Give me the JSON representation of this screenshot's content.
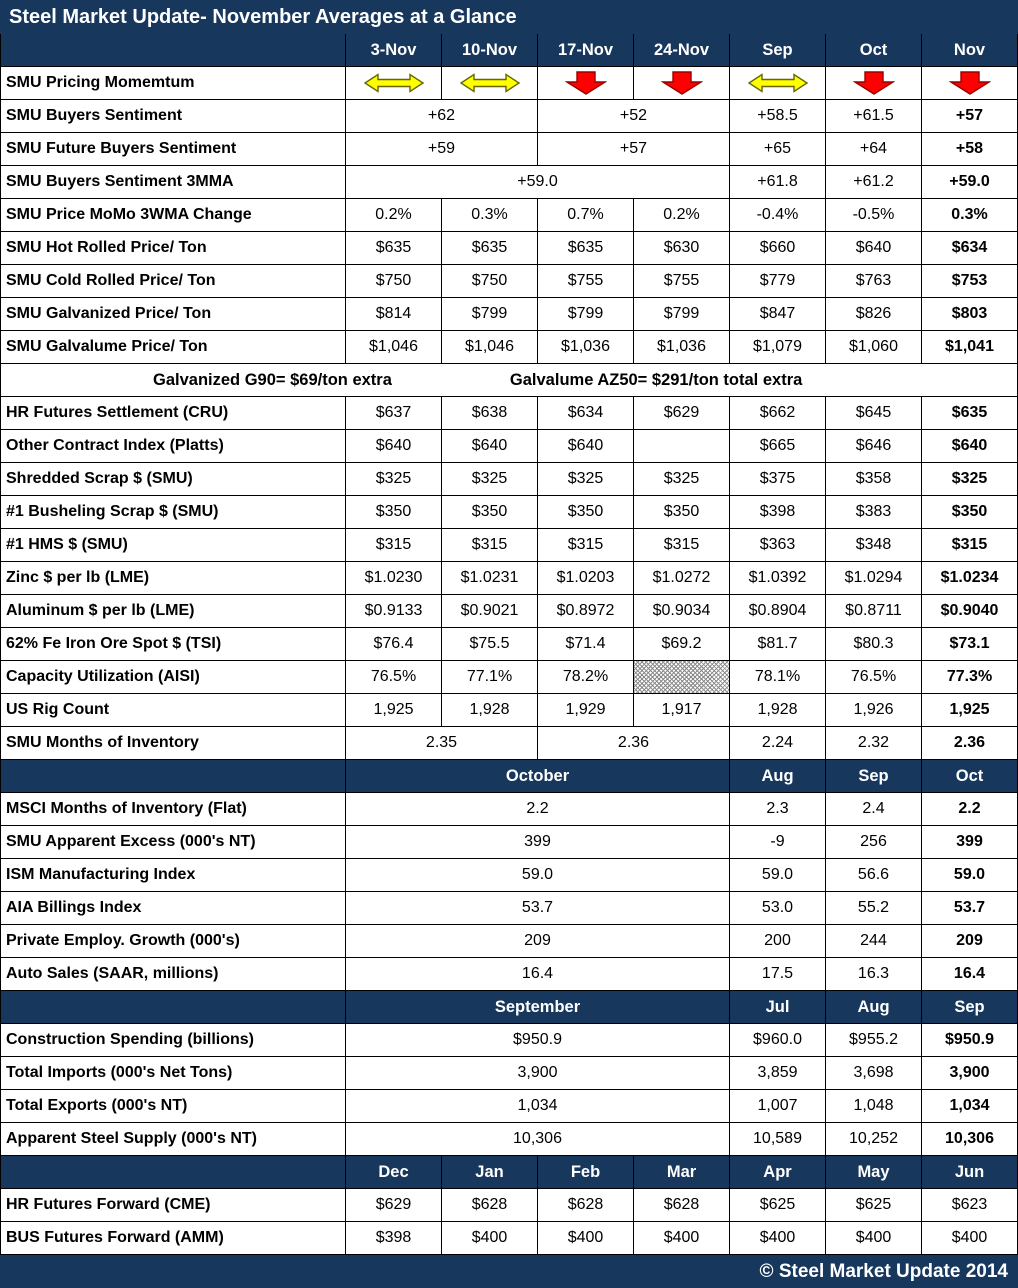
{
  "title": "Steel Market Update- November Averages at a Glance",
  "footer": "© Steel Market Update 2014",
  "colors": {
    "header_bg": "#17375D",
    "header_text": "#FFFFFF",
    "border": "#000000",
    "arrow_yellow": "#FFFF00",
    "arrow_red": "#FF0000"
  },
  "rows": [
    {
      "type": "colheader",
      "label": "",
      "cells": [
        {
          "t": "3-Nov"
        },
        {
          "t": "10-Nov"
        },
        {
          "t": "17-Nov"
        },
        {
          "t": "24-Nov"
        },
        {
          "t": "Sep"
        },
        {
          "t": "Oct"
        },
        {
          "t": "Nov"
        }
      ]
    },
    {
      "type": "arrows",
      "label": "SMU Pricing Momemtum",
      "arrows": [
        "sideways",
        "sideways",
        "down",
        "down",
        "sideways",
        "down",
        "down"
      ]
    },
    {
      "type": "data",
      "label": "SMU Buyers Sentiment",
      "cells": [
        {
          "t": "+62",
          "s": 2
        },
        {
          "t": "+52",
          "s": 2
        },
        {
          "t": "+58.5"
        },
        {
          "t": "+61.5"
        },
        {
          "t": "+57",
          "b": 1
        }
      ]
    },
    {
      "type": "data",
      "label": "SMU Future Buyers Sentiment",
      "cells": [
        {
          "t": "+59",
          "s": 2
        },
        {
          "t": "+57",
          "s": 2
        },
        {
          "t": "+65"
        },
        {
          "t": "+64"
        },
        {
          "t": "+58",
          "b": 1
        }
      ]
    },
    {
      "type": "data",
      "label": "SMU Buyers Sentiment 3MMA",
      "cells": [
        {
          "t": "+59.0",
          "s": 4
        },
        {
          "t": "+61.8"
        },
        {
          "t": "+61.2"
        },
        {
          "t": "+59.0",
          "b": 1
        }
      ]
    },
    {
      "type": "data",
      "label": "SMU Price MoMo 3WMA Change",
      "cells": [
        {
          "t": "0.2%"
        },
        {
          "t": "0.3%"
        },
        {
          "t": "0.7%"
        },
        {
          "t": "0.2%"
        },
        {
          "t": "-0.4%"
        },
        {
          "t": "-0.5%"
        },
        {
          "t": "0.3%",
          "b": 1
        }
      ]
    },
    {
      "type": "data",
      "label": "SMU Hot Rolled Price/ Ton",
      "cells": [
        {
          "t": "$635"
        },
        {
          "t": "$635"
        },
        {
          "t": "$635"
        },
        {
          "t": "$630"
        },
        {
          "t": "$660"
        },
        {
          "t": "$640"
        },
        {
          "t": "$634",
          "b": 1
        }
      ]
    },
    {
      "type": "data",
      "label": "SMU Cold Rolled Price/ Ton",
      "cells": [
        {
          "t": "$750"
        },
        {
          "t": "$750"
        },
        {
          "t": "$755"
        },
        {
          "t": "$755"
        },
        {
          "t": "$779"
        },
        {
          "t": "$763"
        },
        {
          "t": "$753",
          "b": 1
        }
      ]
    },
    {
      "type": "data",
      "label": "SMU Galvanized Price/ Ton",
      "cells": [
        {
          "t": "$814"
        },
        {
          "t": "$799"
        },
        {
          "t": "$799"
        },
        {
          "t": "$799"
        },
        {
          "t": "$847"
        },
        {
          "t": "$826"
        },
        {
          "t": "$803",
          "b": 1
        }
      ]
    },
    {
      "type": "data",
      "label": "SMU Galvalume Price/ Ton",
      "cells": [
        {
          "t": "$1,046"
        },
        {
          "t": "$1,046"
        },
        {
          "t": "$1,036"
        },
        {
          "t": "$1,036"
        },
        {
          "t": "$1,079"
        },
        {
          "t": "$1,060"
        },
        {
          "t": "$1,041",
          "b": 1
        }
      ]
    },
    {
      "type": "note",
      "left": "Galvanized G90= $69/ton extra",
      "right": "Galvalume AZ50= $291/ton total extra"
    },
    {
      "type": "data",
      "label": "HR Futures Settlement (CRU)",
      "cells": [
        {
          "t": "$637"
        },
        {
          "t": "$638"
        },
        {
          "t": "$634"
        },
        {
          "t": "$629"
        },
        {
          "t": "$662"
        },
        {
          "t": "$645"
        },
        {
          "t": "$635",
          "b": 1
        }
      ]
    },
    {
      "type": "data",
      "label": "Other Contract Index (Platts)",
      "cells": [
        {
          "t": "$640"
        },
        {
          "t": "$640"
        },
        {
          "t": "$640"
        },
        {
          "t": ""
        },
        {
          "t": "$665"
        },
        {
          "t": "$646"
        },
        {
          "t": "$640",
          "b": 1
        }
      ]
    },
    {
      "type": "data",
      "label": "Shredded Scrap $ (SMU)",
      "cells": [
        {
          "t": "$325"
        },
        {
          "t": "$325"
        },
        {
          "t": "$325"
        },
        {
          "t": "$325"
        },
        {
          "t": "$375"
        },
        {
          "t": "$358"
        },
        {
          "t": "$325",
          "b": 1
        }
      ]
    },
    {
      "type": "data",
      "label": "#1 Busheling Scrap $ (SMU)",
      "cells": [
        {
          "t": "$350"
        },
        {
          "t": "$350"
        },
        {
          "t": "$350"
        },
        {
          "t": "$350"
        },
        {
          "t": "$398"
        },
        {
          "t": "$383"
        },
        {
          "t": "$350",
          "b": 1
        }
      ]
    },
    {
      "type": "data",
      "label": "#1 HMS $ (SMU)",
      "cells": [
        {
          "t": "$315"
        },
        {
          "t": "$315"
        },
        {
          "t": "$315"
        },
        {
          "t": "$315"
        },
        {
          "t": "$363"
        },
        {
          "t": "$348"
        },
        {
          "t": "$315",
          "b": 1
        }
      ]
    },
    {
      "type": "data",
      "label": "Zinc $ per lb (LME)",
      "cells": [
        {
          "t": "$1.0230"
        },
        {
          "t": "$1.0231"
        },
        {
          "t": "$1.0203"
        },
        {
          "t": "$1.0272"
        },
        {
          "t": "$1.0392"
        },
        {
          "t": "$1.0294"
        },
        {
          "t": "$1.0234",
          "b": 1
        }
      ]
    },
    {
      "type": "data",
      "label": "Aluminum $ per lb (LME)",
      "cells": [
        {
          "t": "$0.9133"
        },
        {
          "t": "$0.9021"
        },
        {
          "t": "$0.8972"
        },
        {
          "t": "$0.9034"
        },
        {
          "t": "$0.8904"
        },
        {
          "t": "$0.8711"
        },
        {
          "t": "$0.9040",
          "b": 1
        }
      ]
    },
    {
      "type": "data",
      "label": "62% Fe Iron Ore Spot $ (TSI)",
      "cells": [
        {
          "t": "$76.4"
        },
        {
          "t": "$75.5"
        },
        {
          "t": "$71.4"
        },
        {
          "t": "$69.2"
        },
        {
          "t": "$81.7"
        },
        {
          "t": "$80.3"
        },
        {
          "t": "$73.1",
          "b": 1
        }
      ]
    },
    {
      "type": "data",
      "label": "Capacity Utilization (AISI)",
      "cells": [
        {
          "t": "76.5%"
        },
        {
          "t": "77.1%"
        },
        {
          "t": "78.2%"
        },
        {
          "t": "",
          "hatch": 1
        },
        {
          "t": "78.1%"
        },
        {
          "t": "76.5%"
        },
        {
          "t": "77.3%",
          "b": 1
        }
      ]
    },
    {
      "type": "data",
      "label": "US Rig Count",
      "cells": [
        {
          "t": "1,925"
        },
        {
          "t": "1,928"
        },
        {
          "t": "1,929"
        },
        {
          "t": "1,917"
        },
        {
          "t": "1,928"
        },
        {
          "t": "1,926"
        },
        {
          "t": "1,925",
          "b": 1
        }
      ]
    },
    {
      "type": "data",
      "label": "SMU Months of Inventory",
      "cells": [
        {
          "t": "2.35",
          "s": 2
        },
        {
          "t": "2.36",
          "s": 2
        },
        {
          "t": "2.24"
        },
        {
          "t": "2.32"
        },
        {
          "t": "2.36",
          "b": 1
        }
      ]
    },
    {
      "type": "subheader",
      "label": "",
      "cells": [
        {
          "t": "October",
          "s": 4
        },
        {
          "t": "Aug"
        },
        {
          "t": "Sep"
        },
        {
          "t": "Oct"
        }
      ]
    },
    {
      "type": "data",
      "label": "MSCI Months of Inventory (Flat)",
      "cells": [
        {
          "t": "2.2",
          "s": 4
        },
        {
          "t": "2.3"
        },
        {
          "t": "2.4"
        },
        {
          "t": "2.2",
          "b": 1
        }
      ]
    },
    {
      "type": "data",
      "label": "SMU Apparent Excess (000's NT)",
      "cells": [
        {
          "t": "399",
          "s": 4
        },
        {
          "t": "-9"
        },
        {
          "t": "256"
        },
        {
          "t": "399",
          "b": 1
        }
      ]
    },
    {
      "type": "data",
      "label": "ISM Manufacturing Index",
      "cells": [
        {
          "t": "59.0",
          "s": 4
        },
        {
          "t": "59.0"
        },
        {
          "t": "56.6"
        },
        {
          "t": "59.0",
          "b": 1
        }
      ]
    },
    {
      "type": "data",
      "label": "AIA Billings Index",
      "cells": [
        {
          "t": "53.7",
          "s": 4
        },
        {
          "t": "53.0"
        },
        {
          "t": "55.2"
        },
        {
          "t": "53.7",
          "b": 1
        }
      ]
    },
    {
      "type": "data",
      "label": "Private Employ. Growth (000's)",
      "cells": [
        {
          "t": "209",
          "s": 4
        },
        {
          "t": "200"
        },
        {
          "t": "244"
        },
        {
          "t": "209",
          "b": 1
        }
      ]
    },
    {
      "type": "data",
      "label": "Auto Sales (SAAR, millions)",
      "cells": [
        {
          "t": "16.4",
          "s": 4
        },
        {
          "t": "17.5"
        },
        {
          "t": "16.3"
        },
        {
          "t": "16.4",
          "b": 1
        }
      ]
    },
    {
      "type": "subheader",
      "label": "",
      "cells": [
        {
          "t": "September",
          "s": 4
        },
        {
          "t": "Jul"
        },
        {
          "t": "Aug"
        },
        {
          "t": "Sep"
        }
      ]
    },
    {
      "type": "data",
      "label": "Construction Spending (billions)",
      "cells": [
        {
          "t": "$950.9",
          "s": 4
        },
        {
          "t": "$960.0"
        },
        {
          "t": "$955.2"
        },
        {
          "t": "$950.9",
          "b": 1
        }
      ]
    },
    {
      "type": "data",
      "label": "Total Imports (000's Net Tons)",
      "cells": [
        {
          "t": "3,900",
          "s": 4
        },
        {
          "t": "3,859"
        },
        {
          "t": "3,698"
        },
        {
          "t": "3,900",
          "b": 1
        }
      ]
    },
    {
      "type": "data",
      "label": "Total Exports (000's NT)",
      "cells": [
        {
          "t": "1,034",
          "s": 4
        },
        {
          "t": "1,007"
        },
        {
          "t": "1,048"
        },
        {
          "t": "1,034",
          "b": 1
        }
      ]
    },
    {
      "type": "data",
      "label": "Apparent Steel Supply (000's NT)",
      "cells": [
        {
          "t": "10,306",
          "s": 4
        },
        {
          "t": "10,589"
        },
        {
          "t": "10,252"
        },
        {
          "t": "10,306",
          "b": 1
        }
      ]
    },
    {
      "type": "subheader",
      "label": "",
      "cells": [
        {
          "t": "Dec"
        },
        {
          "t": "Jan"
        },
        {
          "t": "Feb"
        },
        {
          "t": "Mar"
        },
        {
          "t": "Apr"
        },
        {
          "t": "May"
        },
        {
          "t": "Jun"
        }
      ]
    },
    {
      "type": "data",
      "label": "HR Futures Forward (CME)",
      "cells": [
        {
          "t": "$629"
        },
        {
          "t": "$628"
        },
        {
          "t": "$628"
        },
        {
          "t": "$628"
        },
        {
          "t": "$625"
        },
        {
          "t": "$625"
        },
        {
          "t": "$623"
        }
      ]
    },
    {
      "type": "data",
      "label": "BUS Futures Forward (AMM)",
      "cells": [
        {
          "t": "$398"
        },
        {
          "t": "$400"
        },
        {
          "t": "$400"
        },
        {
          "t": "$400"
        },
        {
          "t": "$400"
        },
        {
          "t": "$400"
        },
        {
          "t": "$400"
        }
      ]
    }
  ]
}
